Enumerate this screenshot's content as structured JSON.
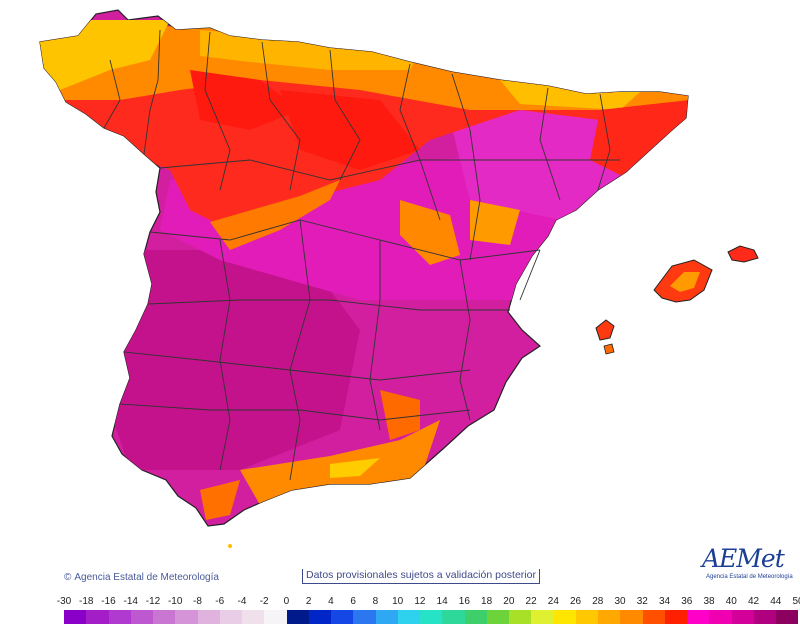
{
  "map": {
    "regions": [
      {
        "name": "peninsula",
        "category": "41",
        "level": "high"
      },
      {
        "name": "north-coast-band",
        "category": "30",
        "level": "medium"
      },
      {
        "name": "galicia-coast",
        "category": "28",
        "level": "medium"
      },
      {
        "name": "mallorca",
        "category": "34",
        "level": "medium"
      },
      {
        "name": "menorca",
        "category": "33",
        "level": "medium"
      },
      {
        "name": "ibiza",
        "category": "34",
        "level": "medium"
      }
    ]
  },
  "footer": {
    "copyright": "Agencia Estatal de Meteorología",
    "copyright_symbol": "©",
    "disclaimer": "Datos provisionales sujetos a validación posterior",
    "logo_text": "AEMet",
    "logo_subtitle": "Agencia Estatal de Meteorología"
  },
  "legend": {
    "values": [
      "-30",
      "-18",
      "-16",
      "-14",
      "-12",
      "-10",
      "-8",
      "-6",
      "-4",
      "-2",
      "0",
      "2",
      "4",
      "6",
      "8",
      "10",
      "12",
      "14",
      "16",
      "18",
      "20",
      "22",
      "24",
      "26",
      "28",
      "30",
      "32",
      "34",
      "36",
      "38",
      "40",
      "42",
      "44",
      "50"
    ],
    "colors": [
      "#8a00c8",
      "#a41ec8",
      "#b03ad0",
      "#bd58d0",
      "#c976d3",
      "#d594d8",
      "#e0b2de",
      "#e9cde6",
      "#efe0ec",
      "#f6f4f6",
      "#001a8c",
      "#0026c8",
      "#1546e6",
      "#2a77f0",
      "#2ea8f2",
      "#2ed2ee",
      "#26e2c6",
      "#2ed89a",
      "#3ccf6a",
      "#6cd43a",
      "#a8e028",
      "#dff030",
      "#ffe600",
      "#ffc800",
      "#ffa800",
      "#ff8a00",
      "#ff5000",
      "#ff2000",
      "#ff00c8",
      "#f000b0",
      "#d4009a",
      "#b00080",
      "#8c0060"
    ]
  }
}
